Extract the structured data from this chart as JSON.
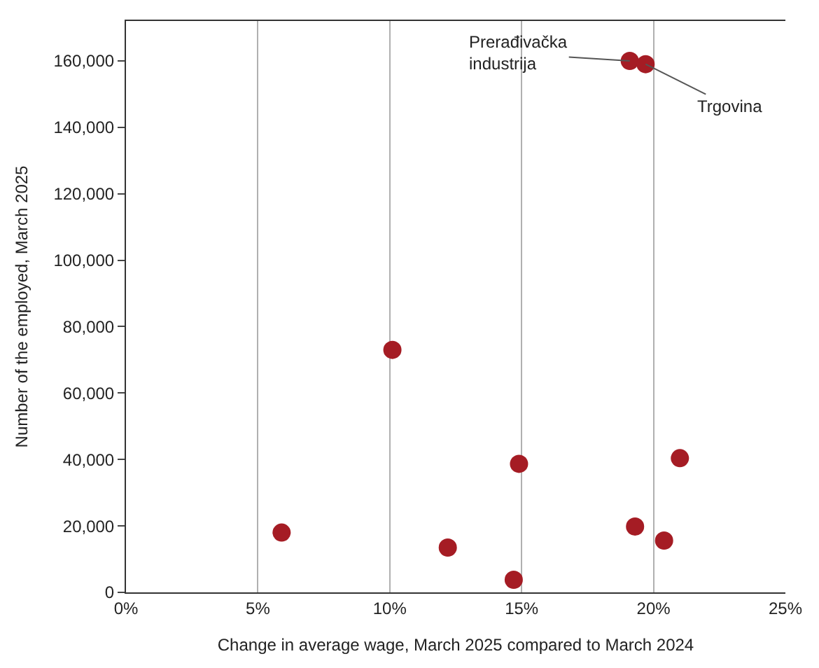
{
  "chart_data": {
    "type": "scatter",
    "xlabel": "Change in average wage, March 2025 compared to March 2024",
    "ylabel": "Number of the employed, March 2025",
    "x": [
      5.9,
      10.1,
      12.2,
      14.7,
      14.9,
      19.1,
      19.7,
      19.3,
      20.4,
      21.0
    ],
    "values": [
      18000,
      73000,
      13500,
      3800,
      38700,
      160000,
      159000,
      19800,
      15600,
      40400
    ],
    "color": "#a51c24",
    "marker": "circle",
    "grid": "x",
    "legend": false,
    "xlim": [
      0,
      25
    ],
    "ylim": [
      0,
      172000
    ],
    "xticks": [
      {
        "value": 0,
        "label": "0%"
      },
      {
        "value": 5,
        "label": "5%"
      },
      {
        "value": 10,
        "label": "10%"
      },
      {
        "value": 15,
        "label": "15%"
      },
      {
        "value": 20,
        "label": "20%"
      },
      {
        "value": 25,
        "label": "25%"
      }
    ],
    "yticks": [
      {
        "value": 0,
        "label": "0"
      },
      {
        "value": 20000,
        "label": "20,000"
      },
      {
        "value": 40000,
        "label": "40,000"
      },
      {
        "value": 60000,
        "label": "60,000"
      },
      {
        "value": 80000,
        "label": "80,000"
      },
      {
        "value": 100000,
        "label": "100,000"
      },
      {
        "value": 120000,
        "label": "120,000"
      },
      {
        "value": 140000,
        "label": "140,000"
      },
      {
        "value": 160000,
        "label": "160,000"
      }
    ],
    "annotations": [
      {
        "text": "Prerađivačka\nindustrija",
        "x": 19.1,
        "y": 160000
      },
      {
        "text": "Trgovina",
        "x": 19.7,
        "y": 159000
      }
    ]
  }
}
